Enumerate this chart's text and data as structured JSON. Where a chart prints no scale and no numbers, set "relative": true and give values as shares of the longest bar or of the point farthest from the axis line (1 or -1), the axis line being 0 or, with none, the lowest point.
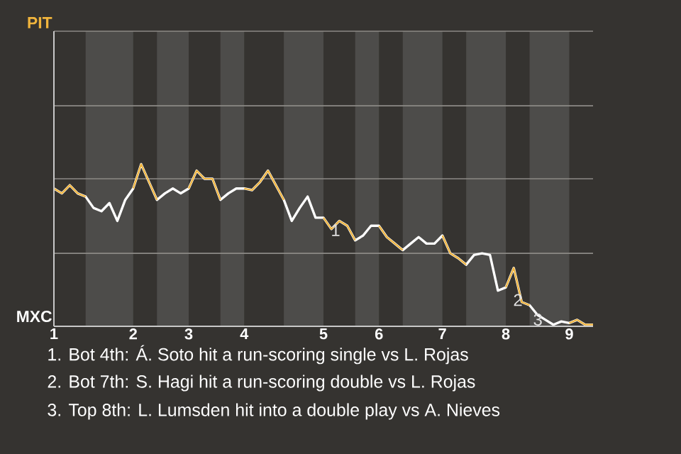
{
  "chart_data": {
    "type": "line",
    "relative": true,
    "categories": [
      "1",
      null,
      null,
      null,
      null,
      null,
      null,
      null,
      null,
      null,
      "2",
      null,
      null,
      null,
      null,
      null,
      null,
      "3",
      null,
      null,
      null,
      null,
      null,
      null,
      "4",
      null,
      null,
      null,
      null,
      null,
      null,
      null,
      null,
      null,
      "5",
      null,
      null,
      null,
      null,
      null,
      null,
      "6",
      null,
      null,
      null,
      null,
      null,
      null,
      null,
      "7",
      null,
      null,
      null,
      null,
      null,
      null,
      null,
      "8",
      null,
      null,
      null,
      null,
      null,
      null,
      null,
      "9",
      null,
      null,
      null
    ],
    "series": [
      {
        "color": "#ffffff",
        "values": [
          0.85,
          0.82,
          0.87,
          0.82,
          0.8,
          0.73,
          0.71,
          0.76,
          0.65,
          0.78,
          0.85,
          1,
          0.89,
          0.78,
          0.82,
          0.85,
          0.82,
          0.85,
          0.96,
          0.91,
          0.91,
          0.78,
          0.82,
          0.85,
          0.85,
          0.84,
          0.89,
          0.96,
          0.87,
          0.78,
          0.65,
          0.73,
          0.8,
          0.67,
          0.67,
          0.6,
          0.65,
          0.62,
          0.53,
          0.56,
          0.62,
          0.62,
          0.55,
          0.51,
          0.47,
          0.51,
          0.55,
          0.51,
          0.51,
          0.56,
          0.45,
          0.42,
          0.38,
          0.44,
          0.45,
          0.44,
          0.22,
          0.24,
          0.36,
          0.15,
          0.13,
          0.07,
          0.04,
          0.01,
          0.03,
          0.02,
          0.04,
          0.01,
          0.01
        ]
      },
      {
        "color": "#f0b43c",
        "values": [
          0.85,
          0.82,
          0.87,
          0.82,
          0.8,
          null,
          null,
          null,
          null,
          null,
          0.85,
          1,
          0.89,
          0.78,
          null,
          null,
          null,
          0.85,
          0.96,
          0.91,
          0.91,
          0.78,
          null,
          null,
          0.85,
          0.84,
          0.89,
          0.96,
          0.87,
          0.78,
          null,
          null,
          null,
          null,
          0.67,
          0.6,
          0.65,
          0.62,
          0.53,
          null,
          null,
          0.62,
          0.55,
          0.51,
          0.47,
          null,
          null,
          null,
          null,
          0.56,
          0.45,
          0.42,
          0.38,
          null,
          null,
          null,
          null,
          0.24,
          0.36,
          0.15,
          0.13,
          null,
          null,
          null,
          null,
          0.02,
          0.04,
          0.01,
          0.01
        ]
      }
    ],
    "ref_lines": [
      {
        "axis": "y",
        "value": 0.45,
        "color": "#8c8a86"
      },
      {
        "axis": "y",
        "value": 0.91,
        "color": "#8c8a86"
      },
      {
        "axis": "y",
        "value": 1.36,
        "color": "#8c8a86"
      }
    ],
    "annotations": [
      "PIT",
      "MXC",
      {
        "text": "1",
        "x": "5",
        "y": 0.67
      },
      {
        "text": "2",
        "x": "8",
        "y": 0.24
      },
      "3",
      "1. Bot 4th: Á. Soto hit a run-scoring single vs L. Rojas",
      "2. Bot 7th: S. Hagi hit a run-scoring double vs L. Rojas",
      "3. Top 8th: L. Lumsden hit into a double play vs A. Nieves"
    ]
  }
}
